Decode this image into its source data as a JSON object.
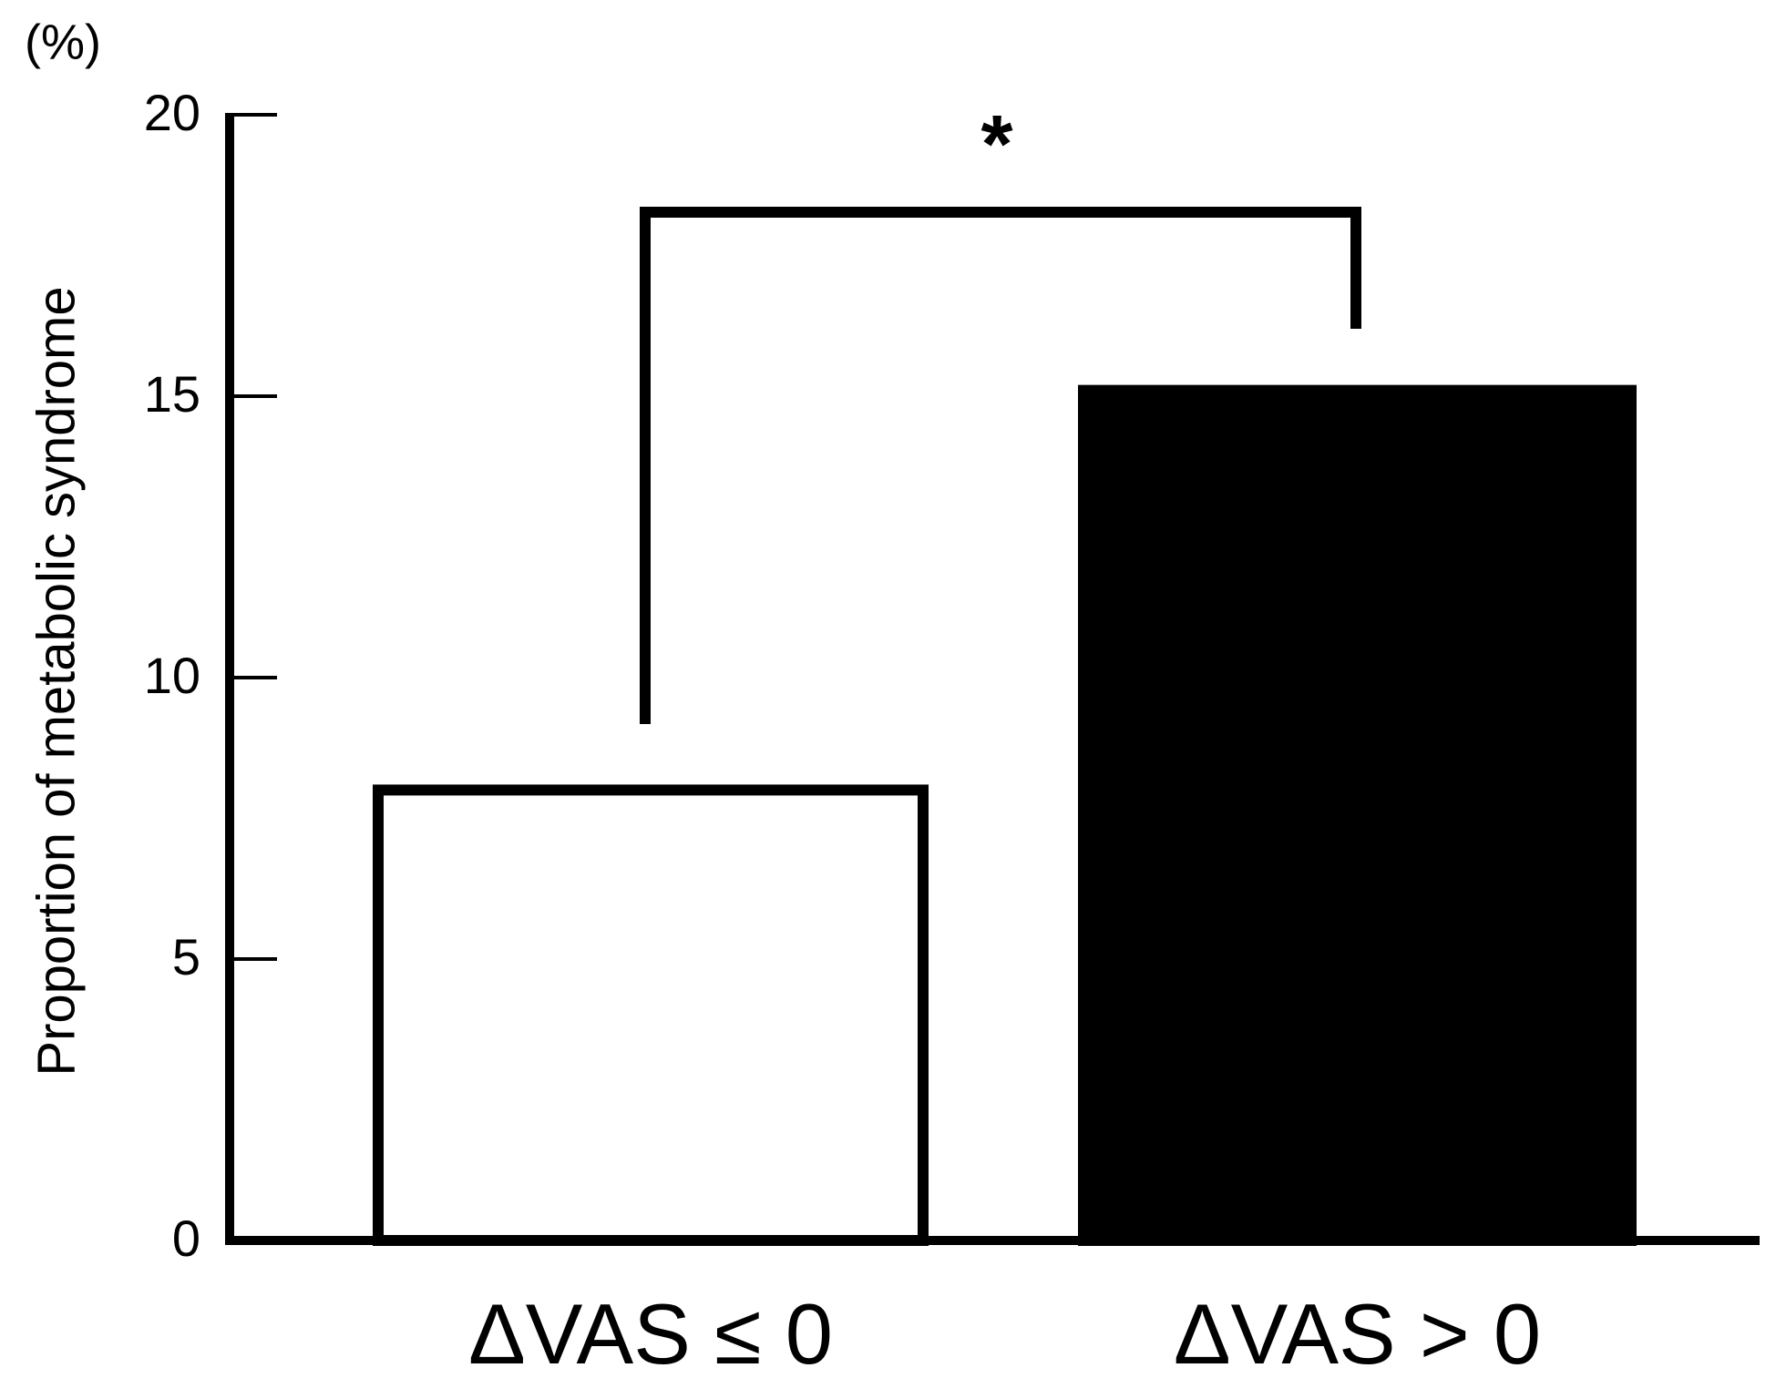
{
  "chart_data": {
    "type": "bar",
    "y_unit": "(%)",
    "ylabel": "Proportion of metabolic syndrome",
    "categories": [
      "ΔVAS ≤ 0",
      "ΔVAS > 0"
    ],
    "values": [
      8.1,
      15.2
    ],
    "colors": [
      "#ffffff",
      "#000000"
    ],
    "edgecolor": "#000000",
    "ylim": [
      0,
      20
    ],
    "yticks": [
      0,
      5,
      10,
      15,
      20
    ],
    "annotation": "*"
  }
}
